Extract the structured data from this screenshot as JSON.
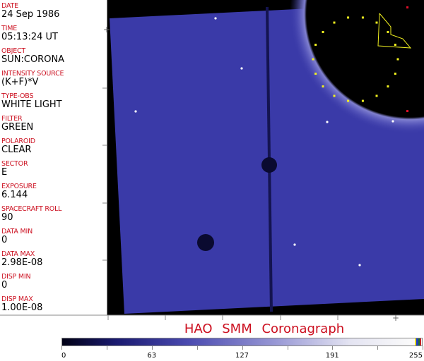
{
  "metadata_panel": {
    "fields": [
      {
        "label": "DATE",
        "value": "24 Sep 1986"
      },
      {
        "label": "TIME",
        "value": "05:13:24 UT"
      },
      {
        "label": "OBJECT",
        "value": "SUN:CORONA"
      },
      {
        "label": "INTENSITY SOURCE",
        "value": "(K+F)*V"
      },
      {
        "label": "TYPE-OBS",
        "value": "WHITE LIGHT"
      },
      {
        "label": "FILTER",
        "value": "GREEN"
      },
      {
        "label": "POLAROID",
        "value": "CLEAR"
      },
      {
        "label": "SECTOR",
        "value": "E"
      },
      {
        "label": "EXPOSURE",
        "value": "6.144"
      },
      {
        "label": "SPACECRAFT ROLL",
        "value": "90"
      },
      {
        "label": "DATA MIN",
        "value": "0"
      },
      {
        "label": "DATA MAX",
        "value": "2.98E-08"
      },
      {
        "label": "DISP MIN",
        "value": "0"
      },
      {
        "label": "DISP MAX",
        "value": "1.00E-08"
      }
    ]
  },
  "title": "HAO  SMM  Coronagraph",
  "colorbar": {
    "ticks": [
      "0",
      "63",
      "127",
      "191",
      "255"
    ],
    "colors": {
      "low": "#000014",
      "mid": "#4a4ab0",
      "high": "#fafafa"
    },
    "end_colors": [
      "#f0e020",
      "#2040c0",
      "#207030",
      "#c02020"
    ]
  },
  "image": {
    "background": "#000000",
    "field_color": "#3a3aa8",
    "grid_marker_colors": {
      "red": "#e0102a",
      "yellow": "#f0f020"
    }
  }
}
